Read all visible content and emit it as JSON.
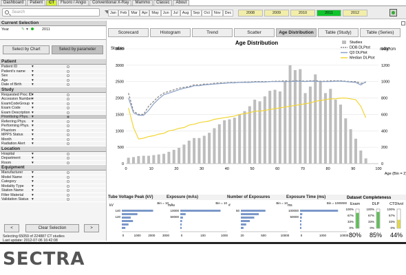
{
  "tabs": [
    "Dashboard",
    "Patient",
    "CT",
    "Fluoro / Angio",
    "Conventional X-Ray",
    "Mammo",
    "Classic",
    "About"
  ],
  "active_tab": 2,
  "search": {
    "placeholder": "Search"
  },
  "months": [
    "Jan",
    "Feb",
    "Mar",
    "Apr",
    "May",
    "Jun",
    "Jul",
    "Aug",
    "Sep",
    "Oct",
    "Nov",
    "Dec"
  ],
  "years": [
    {
      "label": "2008",
      "selected": false
    },
    {
      "label": "2009",
      "selected": false
    },
    {
      "label": "2010",
      "selected": false
    },
    {
      "label": "2011",
      "selected": true
    },
    {
      "label": "2012",
      "selected": false
    }
  ],
  "current_selection": {
    "header": "Current Selection",
    "field": "Year",
    "value": "2011"
  },
  "select_by_chart": "Select by Chart",
  "select_by_parameter": "Select by parameter",
  "groups": [
    {
      "title": "Patient",
      "items": [
        "Patient ID",
        "Patient's name",
        "Sex",
        "Age",
        "Date of Birth"
      ]
    },
    {
      "title": "Study",
      "items": [
        "Requested Proc ID",
        "Accession Number",
        "ExamCodeGroup",
        "Exam Code",
        "Exam Description",
        "Prioritising Phys.",
        "Referring Phys.",
        "Performing Phys.",
        "Phantom",
        "MPPS Status",
        "Month",
        "Radiation Alert"
      ]
    },
    {
      "title": "Location",
      "items": [
        "Hospital",
        "Department",
        "Room"
      ]
    },
    {
      "title": "Equipment",
      "items": [
        "Manufacturer",
        "Model Name",
        "Category",
        "Modality Type",
        "Station Name",
        "Filter Material",
        "Validation Status"
      ]
    }
  ],
  "selected_param": "Prioritising Phys.",
  "nav": {
    "prev": "<",
    "clear": "Clear Selection",
    "next": ">"
  },
  "status": {
    "line1": "Selecting 65059 of 224887 CT studies",
    "line2": "Last update:  2012-07-06 16:42:08"
  },
  "chart_tabs": [
    "Scorecard",
    "Histogram",
    "Trend",
    "Scatter",
    "Age Distribution",
    "Table (Study)",
    "Table (Series)"
  ],
  "active_chart_tab": 4,
  "chart_data": {
    "type": "bar",
    "title": "Age Distribution",
    "ylabel": "Studies",
    "y2label": "mGy*cm",
    "xlabel": "Age (Bin = 2)",
    "xlim": [
      0,
      100
    ],
    "ylim": [
      0,
      3500
    ],
    "y2lim": [
      0,
      1400
    ],
    "xticks": [
      0,
      10,
      20,
      30,
      40,
      50,
      60,
      70,
      80,
      90,
      100
    ],
    "yticks": [
      0,
      500,
      1000,
      1500,
      2000,
      2500,
      3000,
      3500
    ],
    "y2ticks": [
      0,
      200,
      400,
      600,
      800,
      1000,
      1200,
      1400
    ],
    "x": [
      1,
      3,
      5,
      7,
      9,
      11,
      13,
      15,
      17,
      19,
      21,
      23,
      25,
      27,
      29,
      31,
      33,
      35,
      37,
      39,
      41,
      43,
      45,
      47,
      49,
      51,
      53,
      55,
      57,
      59,
      61,
      63,
      65,
      67,
      69,
      71,
      73,
      75,
      77,
      79,
      81,
      83,
      85,
      87,
      89,
      91,
      93,
      95
    ],
    "series": [
      {
        "name": "Studies",
        "axis": "left",
        "color": "#bdbdbd",
        "style": "bar",
        "values": [
          180,
          200,
          230,
          240,
          240,
          260,
          280,
          300,
          360,
          420,
          480,
          580,
          700,
          780,
          780,
          850,
          940,
          1080,
          1200,
          1320,
          1350,
          1400,
          1500,
          1600,
          1750,
          1950,
          1900,
          2050,
          2220,
          2250,
          2200,
          2500,
          3000,
          2850,
          2880,
          2150,
          2350,
          2720,
          2520,
          2150,
          2280,
          1950,
          1800,
          1380,
          1050,
          760,
          400,
          160
        ]
      },
      {
        "name": "DDB DLPtot",
        "axis": "right",
        "color": "#888888",
        "style": "dashed",
        "values": [
          860,
          640,
          600,
          600,
          700,
          760,
          820,
          860,
          880,
          900,
          920,
          930,
          940,
          960,
          960,
          970,
          970,
          980,
          985,
          985,
          990,
          990,
          990,
          995,
          995,
          1000,
          1000,
          1000,
          1000,
          1005,
          1005,
          1010,
          1005,
          1010,
          1010,
          1005,
          1010,
          1010,
          1005,
          1005,
          1010,
          1010,
          1010,
          1005,
          1000,
          1000,
          980,
          990
        ]
      },
      {
        "name": "Q3 DLPtot",
        "axis": "right",
        "color": "#8aa0c4",
        "style": "solid",
        "values": [
          800,
          620,
          590,
          590,
          650,
          730,
          790,
          840,
          860,
          880,
          900,
          920,
          930,
          950,
          950,
          960,
          965,
          970,
          975,
          980,
          985,
          985,
          990,
          990,
          990,
          995,
          995,
          995,
          1000,
          1000,
          1000,
          1000,
          1000,
          1005,
          1005,
          1000,
          1005,
          1005,
          1000,
          1000,
          1000,
          1005,
          1005,
          1000,
          995,
          990,
          960,
          1000
        ]
      },
      {
        "name": "Median DLPtot",
        "axis": "right",
        "color": "#f2d532",
        "style": "solid",
        "values": [
          680,
          440,
          300,
          310,
          330,
          340,
          360,
          370,
          400,
          410,
          430,
          440,
          470,
          480,
          500,
          510,
          520,
          540,
          550,
          560,
          570,
          580,
          600,
          610,
          620,
          640,
          640,
          650,
          660,
          670,
          680,
          690,
          700,
          710,
          720,
          730,
          740,
          760,
          770,
          780,
          790,
          790,
          800,
          800,
          790,
          780,
          700,
          560
        ]
      }
    ],
    "legend": "top-right",
    "grid": true
  },
  "mini_charts": [
    {
      "title": "Tube Voltage Peak (kV)",
      "bin": "Bin = 10",
      "unit": "kV",
      "yticks": [
        "140",
        "120"
      ],
      "xticks": [
        "0",
        "1000",
        "2000",
        "3000"
      ],
      "bars": [
        0.7,
        0.35,
        0.2,
        0.25,
        0.15,
        0.08
      ]
    },
    {
      "title": "Exposure (mAs)",
      "bin": "Bin = 10",
      "unit": "mAs",
      "yticks": [
        "10000",
        "50000"
      ],
      "xticks": [
        "0",
        "100",
        "1000"
      ],
      "bars": [
        0.9,
        0.12,
        0.06,
        0.04,
        0.03,
        0.02
      ]
    },
    {
      "title": "Number of Exposures",
      "bin": "Bin = 10",
      "unit": "#",
      "yticks": [
        "50"
      ],
      "xticks": [
        "20",
        "500",
        "10000"
      ],
      "bars": [
        0.55,
        0.4,
        0.3,
        0.2,
        0.12,
        0.06
      ]
    },
    {
      "title": "Exposure Time (ms)",
      "bin": "Bin = 1000000",
      "unit": "ms",
      "yticks": [
        "100000",
        "50000"
      ],
      "xticks": [
        "0",
        "1000",
        "10000"
      ],
      "bars": [
        0.85,
        0.05,
        0.04,
        0.03,
        0.03,
        0.02
      ]
    }
  ],
  "completeness": {
    "title": "Dataset Completeness",
    "columns": [
      {
        "label": "Exam",
        "value": "80%",
        "fraction": 0.8,
        "color": "#5fbf56"
      },
      {
        "label": "DLP",
        "value": "85%",
        "fraction": 0.85,
        "color": "#5fbf56"
      },
      {
        "label": "CTDIvol",
        "value": "44%",
        "fraction": 0.44,
        "color": "#e3d845"
      }
    ],
    "ticks": [
      "100%",
      "67%",
      "33%",
      "0%"
    ]
  },
  "brand": "SECTRA"
}
